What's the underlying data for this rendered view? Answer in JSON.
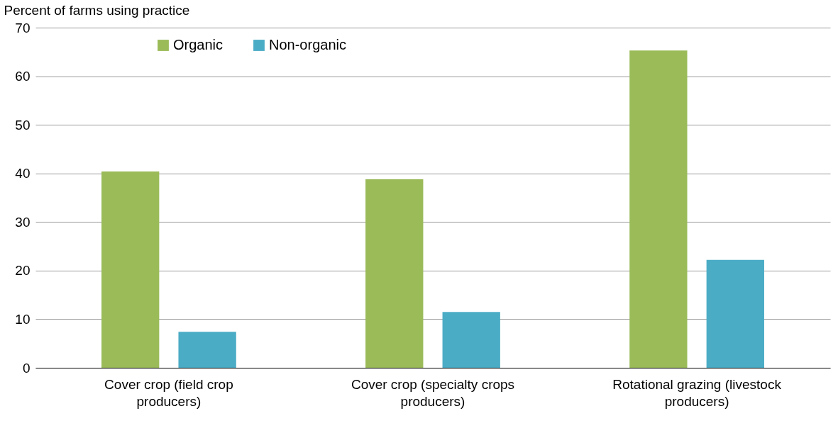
{
  "chart_data": {
    "type": "bar",
    "ylabel": "Percent of farms using practice",
    "categories": [
      "Cover crop (field crop producers)",
      "Cover crop (specialty crops producers)",
      "Rotational grazing (livestock producers)"
    ],
    "series": [
      {
        "name": "Organic",
        "color": "#9bbb59",
        "values": [
          40.4,
          38.8,
          65.3
        ]
      },
      {
        "name": "Non-organic",
        "color": "#4bacc6",
        "values": [
          7.4,
          11.5,
          22.2
        ]
      }
    ],
    "ylim": [
      0,
      70
    ],
    "yticks": [
      0,
      10,
      20,
      30,
      40,
      50,
      60,
      70
    ],
    "grid": "y",
    "legend": "top left"
  }
}
